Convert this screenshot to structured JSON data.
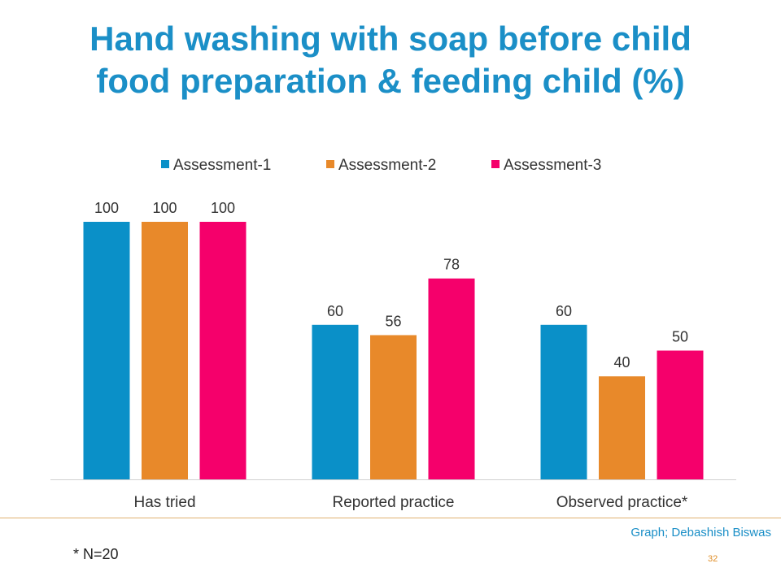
{
  "title": {
    "line1": "Hand washing with soap before child",
    "line2": "food preparation & feeding child (%)"
  },
  "chart_data": {
    "type": "bar",
    "categories": [
      "Has tried",
      "Reported practice",
      "Observed practice*"
    ],
    "series": [
      {
        "name": "Assessment-1",
        "color": "#0a90c8",
        "values": [
          100,
          60,
          60
        ]
      },
      {
        "name": "Assessment-2",
        "color": "#e8892a",
        "values": [
          100,
          56,
          40
        ]
      },
      {
        "name": "Assessment-3",
        "color": "#f5006b",
        "values": [
          100,
          78,
          50
        ]
      }
    ],
    "ylim": [
      0,
      100
    ],
    "grid": false,
    "data_labels": true,
    "legend": "top-center"
  },
  "footnote": "* N=20",
  "credit": "Graph; Debashish Biswas",
  "page_number": "32"
}
